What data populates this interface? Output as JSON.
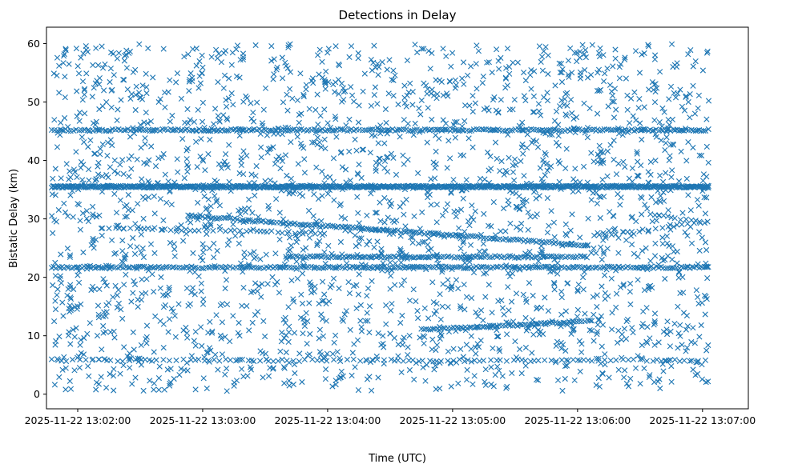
{
  "chart_data": {
    "type": "scatter",
    "title": "Detections in Delay",
    "xlabel": "Time (UTC)",
    "ylabel": "Bistatic Delay (km)",
    "marker": "x",
    "color": "#1f77b4",
    "xlim_seconds": [
      -15,
      322
    ],
    "ylim": [
      -2.5,
      62.8
    ],
    "x_origin": "2025-11-22 13:02:00",
    "xticks": [
      {
        "value": 0,
        "label": "2025-11-22 13:02:00"
      },
      {
        "value": 60,
        "label": "2025-11-22 13:03:00"
      },
      {
        "value": 120,
        "label": "2025-11-22 13:04:00"
      },
      {
        "value": 180,
        "label": "2025-11-22 13:05:00"
      },
      {
        "value": 240,
        "label": "2025-11-22 13:06:00"
      },
      {
        "value": 300,
        "label": "2025-11-22 13:07:00"
      }
    ],
    "yticks": [
      {
        "value": 0,
        "label": "0"
      },
      {
        "value": 10,
        "label": "10"
      },
      {
        "value": 20,
        "label": "20"
      },
      {
        "value": 30,
        "label": "30"
      },
      {
        "value": 40,
        "label": "40"
      },
      {
        "value": 50,
        "label": "50"
      },
      {
        "value": 60,
        "label": "60"
      }
    ],
    "data_range": {
      "t_start": -12.5,
      "t_end": 303,
      "delay_min": 0.5,
      "delay_max": 60
    },
    "tracks": [
      {
        "name": "constant-35.5km",
        "t": [
          -12.5,
          303
        ],
        "delay": [
          35.5,
          35.5
        ],
        "density": "continuous"
      },
      {
        "name": "constant-45km",
        "t": [
          -12.5,
          303
        ],
        "delay": [
          45.2,
          45.2
        ],
        "density": "dense"
      },
      {
        "name": "constant-21.7km",
        "t": [
          -12.5,
          303
        ],
        "delay": [
          21.7,
          21.7
        ],
        "density": "dense"
      },
      {
        "name": "constant-23.5km",
        "t": [
          100,
          245
        ],
        "delay": [
          23.5,
          23.5
        ],
        "density": "dense"
      },
      {
        "name": "constant-6km",
        "t": [
          -12.5,
          303
        ],
        "delay": [
          5.8,
          5.8
        ],
        "density": "medium"
      },
      {
        "name": "descending-30-to-25.5",
        "t": [
          53,
          245
        ],
        "delay": [
          30.5,
          25.5
        ],
        "density": "dense"
      },
      {
        "name": "descending-28.5-to-27.5",
        "t": [
          15,
          120
        ],
        "delay": [
          28.5,
          27.5
        ],
        "density": "medium"
      },
      {
        "name": "ascending-11-to-12.5",
        "t": [
          165,
          248
        ],
        "delay": [
          11.0,
          12.5
        ],
        "density": "dense"
      },
      {
        "name": "ascending-27-to-29.5",
        "t": [
          248,
          303
        ],
        "delay": [
          27.0,
          29.5
        ],
        "density": "medium"
      },
      {
        "name": "descending-31-to-29",
        "t": [
          275,
          303
        ],
        "delay": [
          30.8,
          29.3
        ],
        "density": "medium"
      }
    ],
    "clutter": "approximately uniform random detections across the full time span and delay range 0.5 to 60 km"
  }
}
